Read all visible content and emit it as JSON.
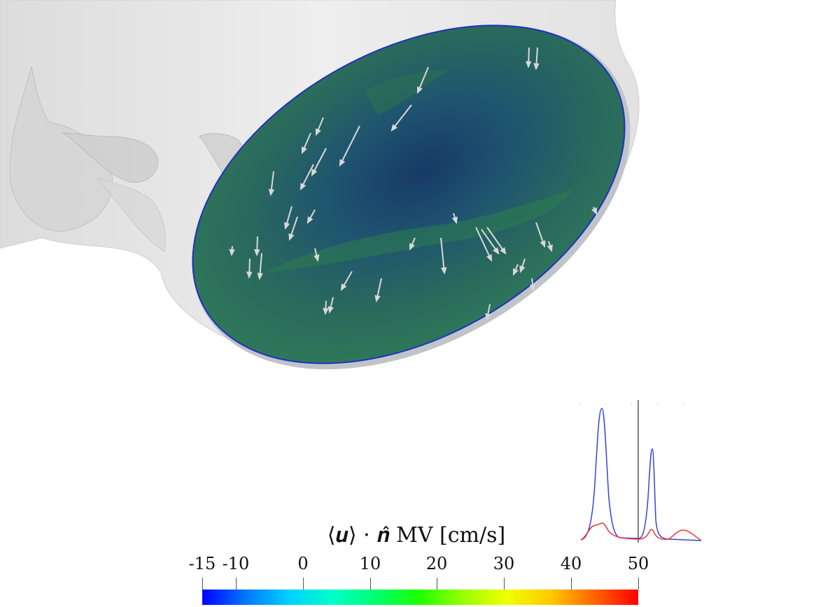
{
  "colorbar": {
    "title": "⟨𝒖⟩ · 𝒏̂ MV [cm/s]",
    "tick_labels": [
      "-15",
      "-10",
      "0",
      "10",
      "20",
      "30",
      "40",
      "50"
    ],
    "tick_values": [
      -15,
      -10,
      0,
      10,
      20,
      30,
      40,
      50
    ],
    "range": [
      -15,
      50
    ],
    "colormap": [
      "#0000ff",
      "#00d2ff",
      "#00ff6e",
      "#9bff00",
      "#f0ff00",
      "#ff6400",
      "#ff0000"
    ]
  },
  "scene": {
    "surface_color": "#2a6a5a",
    "rim_color": "#2030c0",
    "vessel_color": "#e9e9e9",
    "arrow_color": "#d8d8d8"
  },
  "inset_curves": {
    "series": [
      {
        "color": "#3344dd"
      },
      {
        "color": "#ee3333"
      }
    ],
    "indicator_color": "#000000"
  }
}
